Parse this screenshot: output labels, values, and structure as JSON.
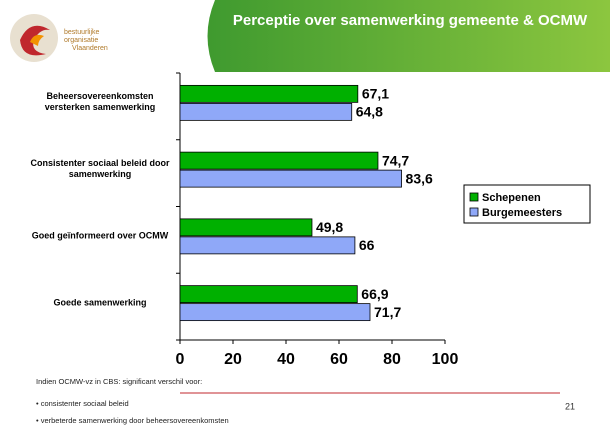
{
  "chart_data": {
    "type": "barh",
    "title": "Perceptie over samenwerking gemeente & OCMW",
    "logo_text": [
      "bestuurlijke",
      "organisatie",
      "Vlaanderen"
    ],
    "categories": [
      "Beheersovereenkomsten versterken samenwerking",
      "Consistenter sociaal beleid door samenwerking",
      "Goed geïnformeerd over OCMW",
      "Goede samenwerking"
    ],
    "series": [
      {
        "name": "Schepenen",
        "color": "#00b000",
        "values": [
          67.1,
          74.7,
          49.8,
          66.9
        ],
        "value_labels": [
          "67,1",
          "74,7",
          "49,8",
          "66,9"
        ]
      },
      {
        "name": "Burgemeesters",
        "color": "#8fa8f8",
        "values": [
          64.8,
          83.6,
          66,
          71.7
        ],
        "value_labels": [
          "64,8",
          "83,6",
          "66",
          "71,7"
        ]
      }
    ],
    "xlim": [
      0,
      100
    ],
    "xticks": [
      0,
      20,
      40,
      60,
      80,
      100
    ],
    "legend": "right",
    "notes": [
      "Indien OCMW-vz in CBS: significant verschil voor:",
      "• consistenter sociaal beleid",
      "• verbeterde samenwerking door beheersovereenkomsten"
    ],
    "page_number": "21"
  }
}
